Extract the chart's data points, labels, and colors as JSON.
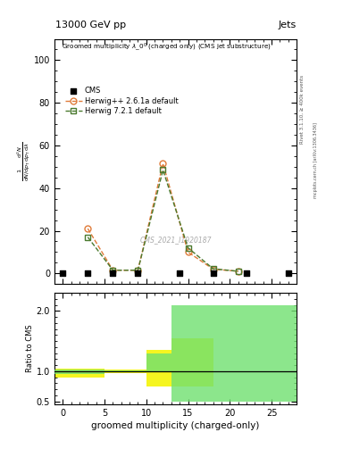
{
  "title_top": "13000 GeV pp",
  "title_right": "Jets",
  "watermark": "CMS_2021_I1920187",
  "rivet_label": "Rivet 3.1.10, ≥ 400k events",
  "mcplots_label": "mcplots.cern.ch [arXiv:1306.3436]",
  "ylabel_ratio": "Ratio to CMS",
  "xlabel": "groomed multiplicity (charged-only)",
  "cms_x": [
    0,
    3,
    6,
    9,
    14,
    18,
    22,
    27
  ],
  "cms_y": [
    0,
    0,
    0,
    0,
    0,
    0,
    0,
    0
  ],
  "hpp_x": [
    3,
    6,
    9,
    12,
    15,
    18,
    21
  ],
  "hpp_y": [
    21.0,
    1.5,
    1.5,
    51.5,
    10.0,
    2.0,
    1.0
  ],
  "h7_x": [
    3,
    6,
    9,
    12,
    15,
    18,
    21
  ],
  "h7_y": [
    17.0,
    1.5,
    1.5,
    48.5,
    12.0,
    2.2,
    1.0
  ],
  "herwig_color": "#e07b39",
  "herwig7_color": "#4a7a2e",
  "ylim_main": [
    -5,
    110
  ],
  "ylim_ratio": [
    0.45,
    2.3
  ],
  "xlim_main": [
    -1,
    28
  ],
  "xlim_ratio": [
    -1,
    28
  ],
  "yticks_main": [
    0,
    20,
    40,
    60,
    80,
    100
  ],
  "yticks_ratio": [
    0.5,
    1.0,
    2.0
  ],
  "ratio_yellow_bins": [
    [
      -1,
      5
    ],
    [
      5,
      10
    ],
    [
      10,
      13
    ],
    [
      13,
      18
    ]
  ],
  "ratio_yellow_lo": [
    0.9,
    0.97,
    0.75,
    0.75
  ],
  "ratio_yellow_hi": [
    1.05,
    1.03,
    1.35,
    1.55
  ],
  "ratio_green_bins": [
    [
      -1,
      5
    ],
    [
      5,
      10
    ],
    [
      10,
      13
    ],
    [
      13,
      18
    ],
    [
      18,
      28
    ]
  ],
  "ratio_green_lo": [
    0.95,
    0.99,
    1.0,
    0.5,
    0.5
  ],
  "ratio_green_hi": [
    1.03,
    1.01,
    1.3,
    2.1,
    2.1
  ],
  "yellow_color": "#f5f520",
  "green_color": "#70e070"
}
